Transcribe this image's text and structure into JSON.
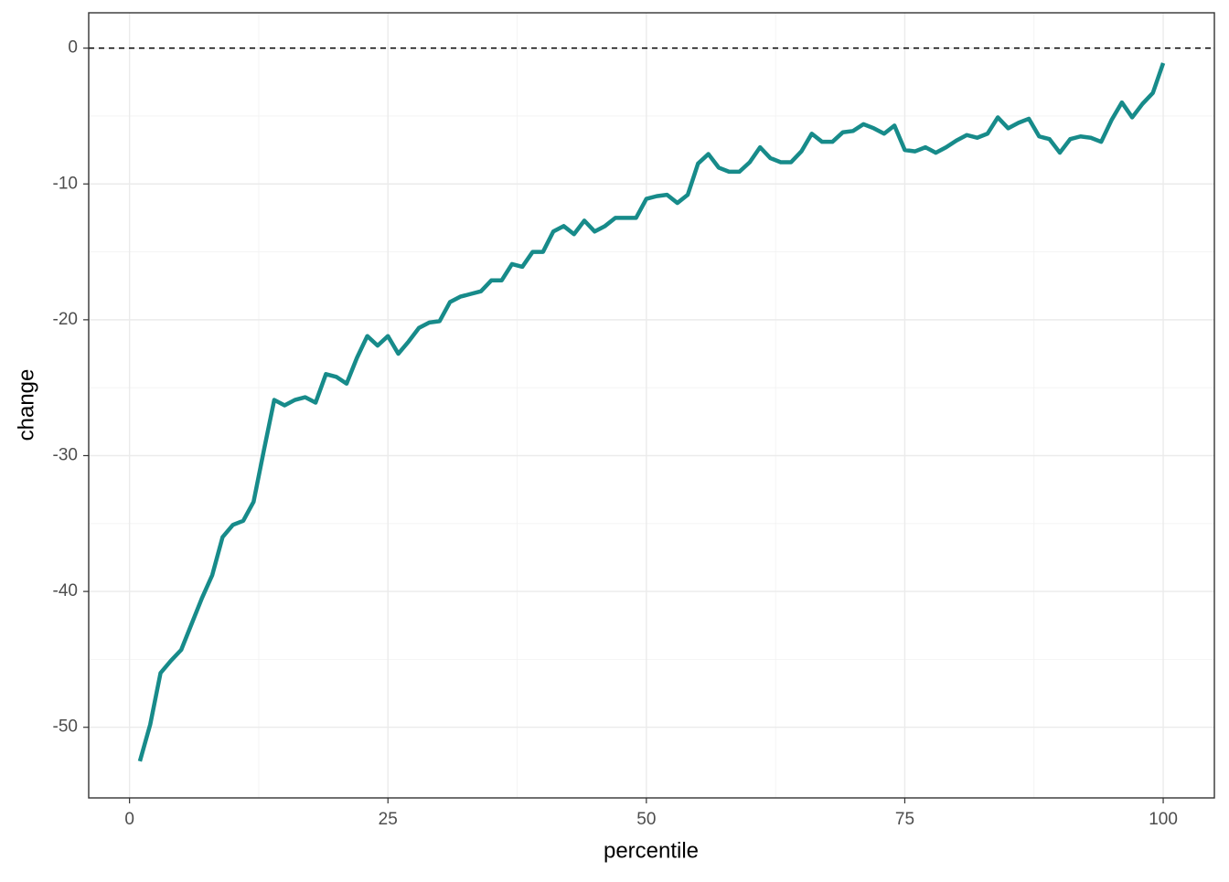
{
  "chart_data": {
    "type": "line",
    "x_label": "percentile",
    "y_label": "change",
    "x": [
      1,
      2,
      3,
      4,
      5,
      6,
      7,
      8,
      9,
      10,
      11,
      12,
      13,
      14,
      15,
      16,
      17,
      18,
      19,
      20,
      21,
      22,
      23,
      24,
      25,
      26,
      27,
      28,
      29,
      30,
      31,
      32,
      33,
      34,
      35,
      36,
      37,
      38,
      39,
      40,
      41,
      42,
      43,
      44,
      45,
      46,
      47,
      48,
      49,
      50,
      51,
      52,
      53,
      54,
      55,
      56,
      57,
      58,
      59,
      60,
      61,
      62,
      63,
      64,
      65,
      66,
      67,
      68,
      69,
      70,
      71,
      72,
      73,
      74,
      75,
      76,
      77,
      78,
      79,
      80,
      81,
      82,
      83,
      84,
      85,
      86,
      87,
      88,
      89,
      90,
      91,
      92,
      93,
      94,
      95,
      96,
      97,
      98,
      99,
      100
    ],
    "series": [
      {
        "color": "#178b8a",
        "values": [
          -52.5,
          -49.8,
          -46.0,
          -45.1,
          -44.3,
          -42.4,
          -40.5,
          -38.8,
          -36.0,
          -35.1,
          -34.8,
          -33.4,
          -29.6,
          -25.9,
          -26.3,
          -25.9,
          -25.7,
          -26.1,
          -24.0,
          -24.2,
          -24.7,
          -22.8,
          -21.2,
          -21.9,
          -21.2,
          -22.5,
          -21.6,
          -20.6,
          -20.2,
          -20.1,
          -18.7,
          -18.3,
          -18.1,
          -17.9,
          -17.1,
          -17.1,
          -15.9,
          -16.1,
          -15.0,
          -15.0,
          -13.5,
          -13.1,
          -13.7,
          -12.7,
          -13.5,
          -13.1,
          -12.5,
          -12.5,
          -12.5,
          -11.1,
          -10.9,
          -10.8,
          -11.4,
          -10.8,
          -8.5,
          -7.8,
          -8.8,
          -9.1,
          -9.1,
          -8.4,
          -7.3,
          -8.1,
          -8.4,
          -8.4,
          -7.6,
          -6.3,
          -6.9,
          -6.9,
          -6.2,
          -6.1,
          -5.6,
          -5.9,
          -6.3,
          -5.7,
          -7.5,
          -7.6,
          -7.3,
          -7.7,
          -7.3,
          -6.8,
          -6.4,
          -6.6,
          -6.3,
          -5.1,
          -5.9,
          -5.5,
          -5.2,
          -6.5,
          -6.7,
          -7.7,
          -6.7,
          -6.5,
          -6.6,
          -6.9,
          -5.3,
          -4.0,
          -5.1,
          -4.1,
          -3.3,
          -1.1
        ]
      }
    ],
    "hline": 0,
    "xlim": [
      -3.95,
      104.95
    ],
    "ylim": [
      -55.2,
      2.6
    ],
    "xticks": [
      0,
      25,
      50,
      75,
      100
    ],
    "yticks": [
      0,
      -10,
      -20,
      -30,
      -40,
      -50
    ],
    "xminor": [
      12.5,
      37.5,
      62.5,
      87.5
    ],
    "yminor": [
      0,
      -5,
      -15,
      -25,
      -35,
      -45
    ],
    "grid": true
  }
}
